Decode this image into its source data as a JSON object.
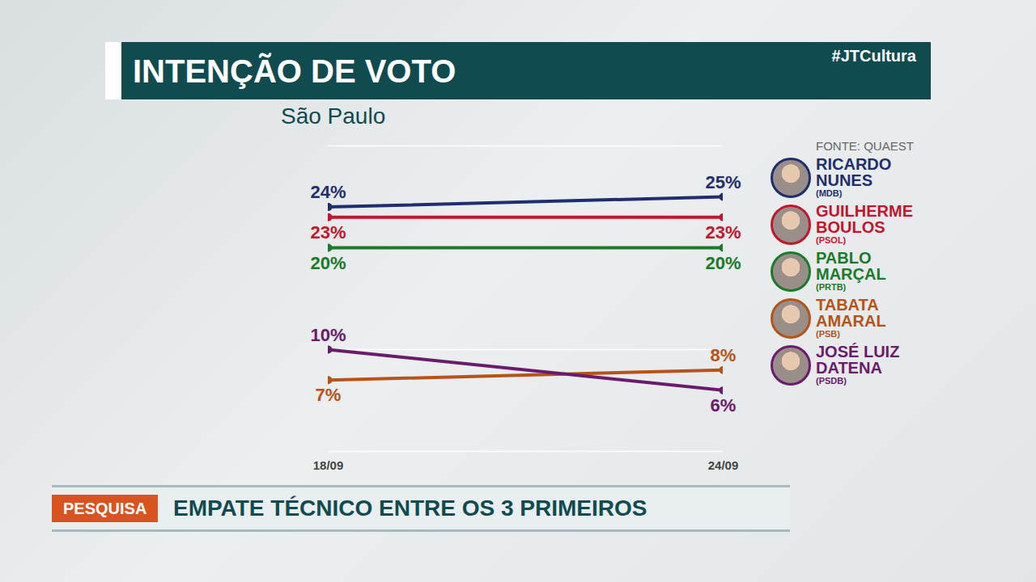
{
  "chart_data": {
    "type": "line",
    "title": "INTENÇÃO DE VOTO",
    "subtitle": "São Paulo",
    "source": "FONTE: QUAEST",
    "hashtag": "#JTCultura",
    "banner": {
      "tag": "PESQUISA",
      "text": "EMPATE TÉCNICO ENTRE OS 3 PRIMEIROS"
    },
    "x": [
      "18/09",
      "24/09"
    ],
    "series": [
      {
        "name": "RICARDO NUNES",
        "party": "(MDB)",
        "color": "#1f2f6e",
        "values": [
          24,
          25
        ],
        "value_labels": [
          "24%",
          "25%"
        ]
      },
      {
        "name": "GUILHERME BOULOS",
        "party": "(PSOL)",
        "color": "#c0172f",
        "values": [
          23,
          23
        ],
        "value_labels": [
          "23%",
          "23%"
        ]
      },
      {
        "name": "PABLO MARÇAL",
        "party": "(PRTB)",
        "color": "#1c7a2a",
        "values": [
          20,
          20
        ],
        "value_labels": [
          "20%",
          "20%"
        ]
      },
      {
        "name": "TABATA AMARAL",
        "party": "(PSB)",
        "color": "#b5541a",
        "values": [
          7,
          8
        ],
        "value_labels": [
          "7%",
          "8%"
        ]
      },
      {
        "name": "JOSÉ LUIZ DATENA",
        "party": "(PSDB)",
        "color": "#6b1b6b",
        "values": [
          10,
          6
        ],
        "value_labels": [
          "10%",
          "6%"
        ]
      }
    ],
    "ylim": [
      0,
      30
    ],
    "yticks": [
      0,
      10,
      20,
      30
    ],
    "grid": true,
    "tick_labels": "x",
    "data_labels": true,
    "marker": "circle",
    "legend": "right"
  }
}
